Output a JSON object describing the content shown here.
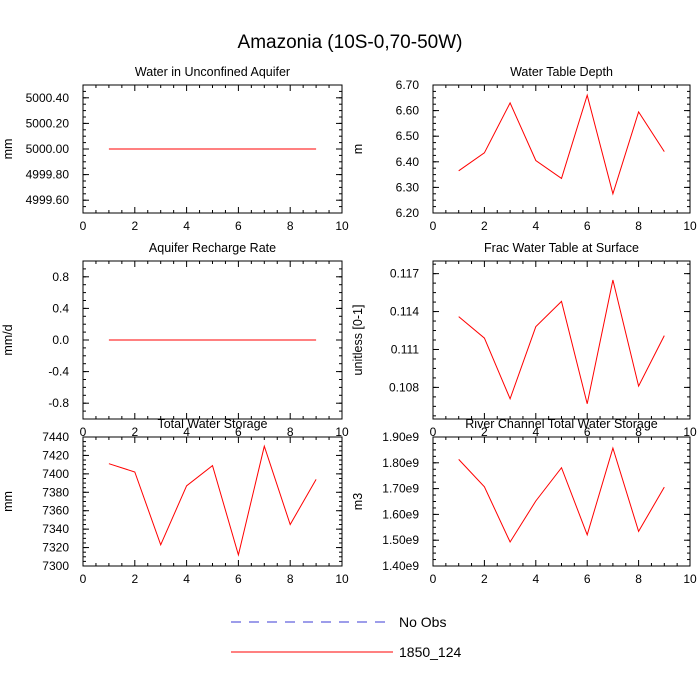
{
  "figure_title": "Amazonia (10S-0,70-50W)",
  "legend": {
    "items": [
      {
        "label": "No Obs",
        "style": "dashed",
        "color": "#3b3bd6"
      },
      {
        "label": "1850_124",
        "style": "solid",
        "color": "#ff0000"
      }
    ]
  },
  "chart_data": [
    {
      "type": "line",
      "title": "Water in Unconfined Aquifer",
      "ylabel": "mm",
      "xlim": [
        0,
        10
      ],
      "ylim": [
        4999.5,
        5000.5
      ],
      "xticks": [
        "0",
        "2",
        "4",
        "6",
        "8",
        "10"
      ],
      "yticks": [
        {
          "value": 4999.6,
          "label": "4999.60"
        },
        {
          "value": 4999.8,
          "label": "4999.80"
        },
        {
          "value": 5000.0,
          "label": "5000.00"
        },
        {
          "value": 5000.2,
          "label": "5000.20"
        },
        {
          "value": 5000.4,
          "label": "5000.40"
        }
      ],
      "series": [
        {
          "color": "#ff0000",
          "x": [
            1,
            2,
            3,
            4,
            5,
            6,
            7,
            8,
            9
          ],
          "values": [
            5000,
            5000,
            5000,
            5000,
            5000,
            5000,
            5000,
            5000,
            5000
          ]
        }
      ]
    },
    {
      "type": "line",
      "title": "Water Table Depth",
      "ylabel": "m",
      "xlim": [
        0,
        10
      ],
      "ylim": [
        6.2,
        6.7
      ],
      "xticks": [
        "0",
        "2",
        "4",
        "6",
        "8",
        "10"
      ],
      "yticks": [
        {
          "value": 6.2,
          "label": "6.20"
        },
        {
          "value": 6.3,
          "label": "6.30"
        },
        {
          "value": 6.4,
          "label": "6.40"
        },
        {
          "value": 6.5,
          "label": "6.50"
        },
        {
          "value": 6.6,
          "label": "6.60"
        },
        {
          "value": 6.7,
          "label": "6.70"
        }
      ],
      "series": [
        {
          "color": "#ff0000",
          "x": [
            1,
            2,
            3,
            4,
            5,
            6,
            7,
            8,
            9
          ],
          "values": [
            6.365,
            6.435,
            6.63,
            6.405,
            6.335,
            6.66,
            6.275,
            6.595,
            6.44
          ]
        }
      ]
    },
    {
      "type": "line",
      "title": "Aquifer Recharge Rate",
      "ylabel": "mm/d",
      "xlim": [
        0,
        10
      ],
      "ylim": [
        -1.0,
        1.0
      ],
      "xticks": [
        "0",
        "2",
        "4",
        "6",
        "8",
        "10"
      ],
      "yticks": [
        {
          "value": -0.8,
          "label": "-0.8"
        },
        {
          "value": -0.4,
          "label": "-0.4"
        },
        {
          "value": 0.0,
          "label": "0.0"
        },
        {
          "value": 0.4,
          "label": "0.4"
        },
        {
          "value": 0.8,
          "label": "0.8"
        }
      ],
      "series": [
        {
          "color": "#ff0000",
          "x": [
            1,
            2,
            3,
            4,
            5,
            6,
            7,
            8,
            9
          ],
          "values": [
            0,
            0,
            0,
            0,
            0,
            0,
            0,
            0,
            0
          ]
        }
      ]
    },
    {
      "type": "line",
      "title": "Frac Water Table at Surface",
      "ylabel": "unitless [0-1]",
      "xlim": [
        0,
        10
      ],
      "ylim": [
        0.1055,
        0.118
      ],
      "xticks": [
        "0",
        "2",
        "4",
        "6",
        "8",
        "10"
      ],
      "yticks": [
        {
          "value": 0.108,
          "label": "0.108"
        },
        {
          "value": 0.111,
          "label": "0.111"
        },
        {
          "value": 0.114,
          "label": "0.114"
        },
        {
          "value": 0.117,
          "label": "0.117"
        }
      ],
      "series": [
        {
          "color": "#ff0000",
          "x": [
            1,
            2,
            3,
            4,
            5,
            6,
            7,
            8,
            9
          ],
          "values": [
            0.1136,
            0.1119,
            0.1071,
            0.1128,
            0.1148,
            0.1067,
            0.1165,
            0.1081,
            0.1121
          ]
        }
      ]
    },
    {
      "type": "line",
      "title": "Total Water Storage",
      "ylabel": "mm",
      "xlim": [
        0,
        10
      ],
      "ylim": [
        7300,
        7440
      ],
      "xticks": [
        "0",
        "2",
        "4",
        "6",
        "8",
        "10"
      ],
      "yticks": [
        {
          "value": 7300,
          "label": "7300"
        },
        {
          "value": 7320,
          "label": "7320"
        },
        {
          "value": 7340,
          "label": "7340"
        },
        {
          "value": 7360,
          "label": "7360"
        },
        {
          "value": 7380,
          "label": "7380"
        },
        {
          "value": 7400,
          "label": "7400"
        },
        {
          "value": 7420,
          "label": "7420"
        },
        {
          "value": 7440,
          "label": "7440"
        }
      ],
      "series": [
        {
          "color": "#ff0000",
          "x": [
            1,
            2,
            3,
            4,
            5,
            6,
            7,
            8,
            9
          ],
          "values": [
            7411,
            7402,
            7323,
            7387,
            7409,
            7312,
            7430,
            7345,
            7394
          ]
        }
      ]
    },
    {
      "type": "line",
      "title": "River Channel Total Water Storage",
      "ylabel": "m3",
      "xlim": [
        0,
        10
      ],
      "ylim": [
        1400000000.0,
        1900000000.0
      ],
      "xticks": [
        "0",
        "2",
        "4",
        "6",
        "8",
        "10"
      ],
      "yticks": [
        {
          "value": 1400000000.0,
          "label": "1.40e9"
        },
        {
          "value": 1500000000.0,
          "label": "1.50e9"
        },
        {
          "value": 1600000000.0,
          "label": "1.60e9"
        },
        {
          "value": 1700000000.0,
          "label": "1.70e9"
        },
        {
          "value": 1800000000.0,
          "label": "1.80e9"
        },
        {
          "value": 1900000000.0,
          "label": "1.90e9"
        }
      ],
      "series": [
        {
          "color": "#ff0000",
          "x": [
            1,
            2,
            3,
            4,
            5,
            6,
            7,
            8,
            9
          ],
          "values": [
            1813000000.0,
            1707000000.0,
            1493000000.0,
            1652000000.0,
            1781000000.0,
            1521000000.0,
            1857000000.0,
            1534000000.0,
            1706000000.0
          ]
        }
      ]
    }
  ]
}
